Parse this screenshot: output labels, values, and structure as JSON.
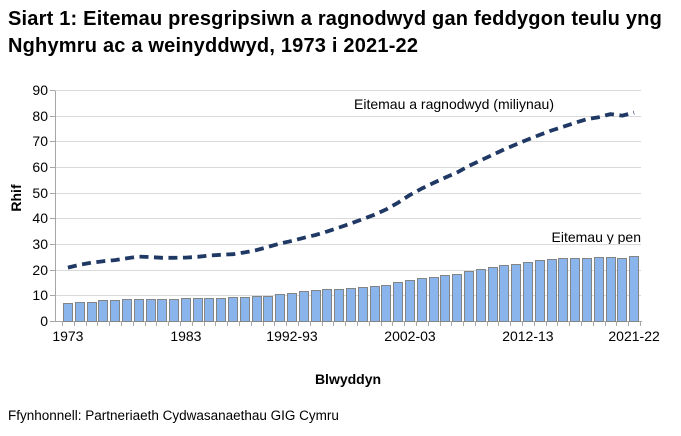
{
  "page": {
    "source": "Ffynhonnell: Partneriaeth Cydwasanaethau GIG Cymru"
  },
  "chart_data": {
    "type": "combo",
    "title": "Siart 1: Eitemau presgripsiwn a ragnodwyd gan feddygon teulu yng Nghymru ac a weinyddwyd, 1973 i 2021-22",
    "xlabel": "Blwyddyn",
    "ylabel": "Rhif",
    "ylim": [
      0,
      90
    ],
    "ytick_step": 10,
    "grid": "horizontal",
    "legend_position": "inline-annotations",
    "categories": [
      "1973",
      "1974",
      "1975",
      "1976",
      "1977",
      "1978",
      "1979",
      "1980",
      "1981",
      "1982",
      "1983",
      "1984",
      "1985",
      "1986",
      "1987",
      "1988",
      "1989",
      "1990",
      "1991",
      "1992-93",
      "1993-94",
      "1994-95",
      "1995-96",
      "1996-97",
      "1997-98",
      "1998-99",
      "1999-00",
      "2000-01",
      "2001-02",
      "2002-03",
      "2003-04",
      "2004-05",
      "2005-06",
      "2006-07",
      "2007-08",
      "2008-09",
      "2009-10",
      "2010-11",
      "2011-12",
      "2012-13",
      "2013-14",
      "2014-15",
      "2015-16",
      "2016-17",
      "2017-18",
      "2018-19",
      "2019-20",
      "2020-21",
      "2021-22"
    ],
    "series": [
      {
        "name": "Eitemau y pen",
        "type": "bar",
        "color": "#89b4ec",
        "values": [
          7.6,
          8.0,
          8.0,
          8.4,
          8.4,
          8.8,
          8.8,
          9.0,
          9.0,
          9.0,
          9.2,
          9.2,
          9.4,
          9.5,
          9.7,
          9.9,
          10.1,
          10.3,
          11.0,
          11.5,
          12.0,
          12.3,
          12.7,
          12.7,
          13.4,
          13.8,
          14.2,
          14.6,
          15.5,
          16.3,
          17.0,
          17.7,
          18.3,
          18.9,
          19.7,
          20.8,
          21.4,
          22.2,
          22.8,
          23.3,
          24.0,
          24.6,
          24.8,
          24.8,
          24.8,
          25.3,
          25.2,
          24.9,
          25.8
        ]
      },
      {
        "name": "Eitemau a ragnodwyd (miliynau)",
        "type": "line",
        "style": "dashed",
        "color": "#1f3864",
        "values": [
          21.2,
          22.3,
          23.1,
          23.7,
          24.1,
          24.8,
          25.5,
          25.3,
          25.0,
          25.0,
          25.1,
          25.4,
          25.9,
          26.2,
          26.4,
          27.1,
          28.0,
          29.3,
          30.6,
          31.6,
          32.8,
          33.9,
          35.3,
          36.8,
          38.4,
          40.1,
          41.8,
          43.9,
          46.5,
          49.5,
          52.0,
          54.2,
          56.3,
          58.3,
          60.8,
          63.0,
          65.1,
          67.3,
          69.2,
          71.1,
          72.9,
          74.6,
          76.1,
          77.6,
          79.0,
          79.8,
          81.0,
          80.4,
          81.6
        ]
      }
    ],
    "visible_xticks": [
      {
        "index": 0,
        "label": "1973"
      },
      {
        "index": 10,
        "label": "1983"
      },
      {
        "index": 19,
        "label": "1992-93"
      },
      {
        "index": 29,
        "label": "2002-03"
      },
      {
        "index": 39,
        "label": "2012-13"
      },
      {
        "index": 48,
        "label": "2021-22"
      }
    ]
  },
  "colors": {
    "bar_fill": "#89b4ec",
    "bar_border": "#848484",
    "line": "#1f3864",
    "gridline": "#d9d9d9",
    "axis": "#a6a6a6"
  }
}
